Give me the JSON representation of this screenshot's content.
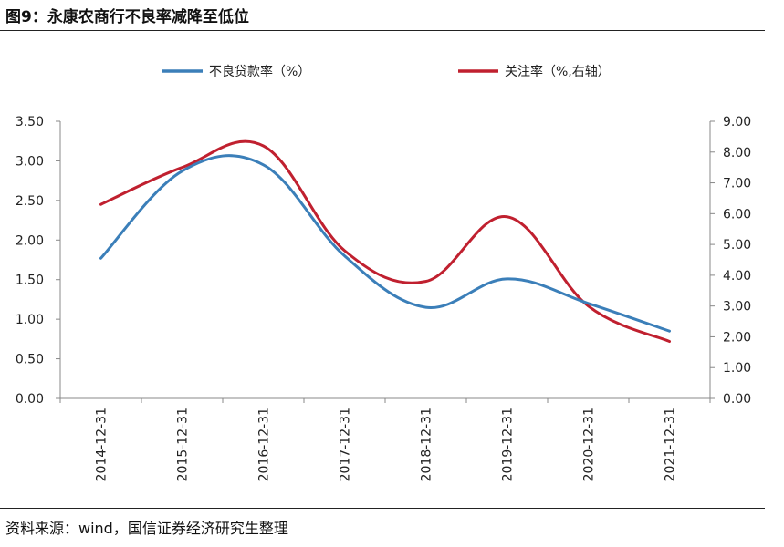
{
  "figure": {
    "title": "图9：永康农商行不良率减降至低位",
    "source": "资料来源：wind，国信证券经济研究生整理"
  },
  "chart_data": {
    "type": "line",
    "title": "图9：永康农商行不良率减降至低位",
    "categories": [
      "2014-12-31",
      "2015-12-31",
      "2016-12-31",
      "2017-12-31",
      "2018-12-31",
      "2019-12-31",
      "2020-12-31",
      "2021-12-31"
    ],
    "series": [
      {
        "name": "不良贷款率（%）",
        "axis": "left",
        "color": "#3b7fb9",
        "values": [
          1.77,
          2.87,
          2.95,
          1.8,
          1.15,
          1.51,
          1.2,
          0.85
        ]
      },
      {
        "name": "关注率（%,右轴）",
        "axis": "right",
        "color": "#c0202f",
        "values": [
          6.3,
          7.5,
          8.2,
          4.8,
          3.8,
          5.9,
          3.0,
          1.85
        ]
      }
    ],
    "y_left": {
      "min": 0,
      "max": 3.5,
      "ticks": [
        "0.00",
        "0.50",
        "1.00",
        "1.50",
        "2.00",
        "2.50",
        "3.00",
        "3.50"
      ]
    },
    "y_right": {
      "min": 0,
      "max": 9,
      "ticks": [
        "0.00",
        "1.00",
        "2.00",
        "3.00",
        "4.00",
        "5.00",
        "6.00",
        "7.00",
        "8.00",
        "9.00"
      ]
    },
    "legend_position": "top",
    "grid": false
  }
}
